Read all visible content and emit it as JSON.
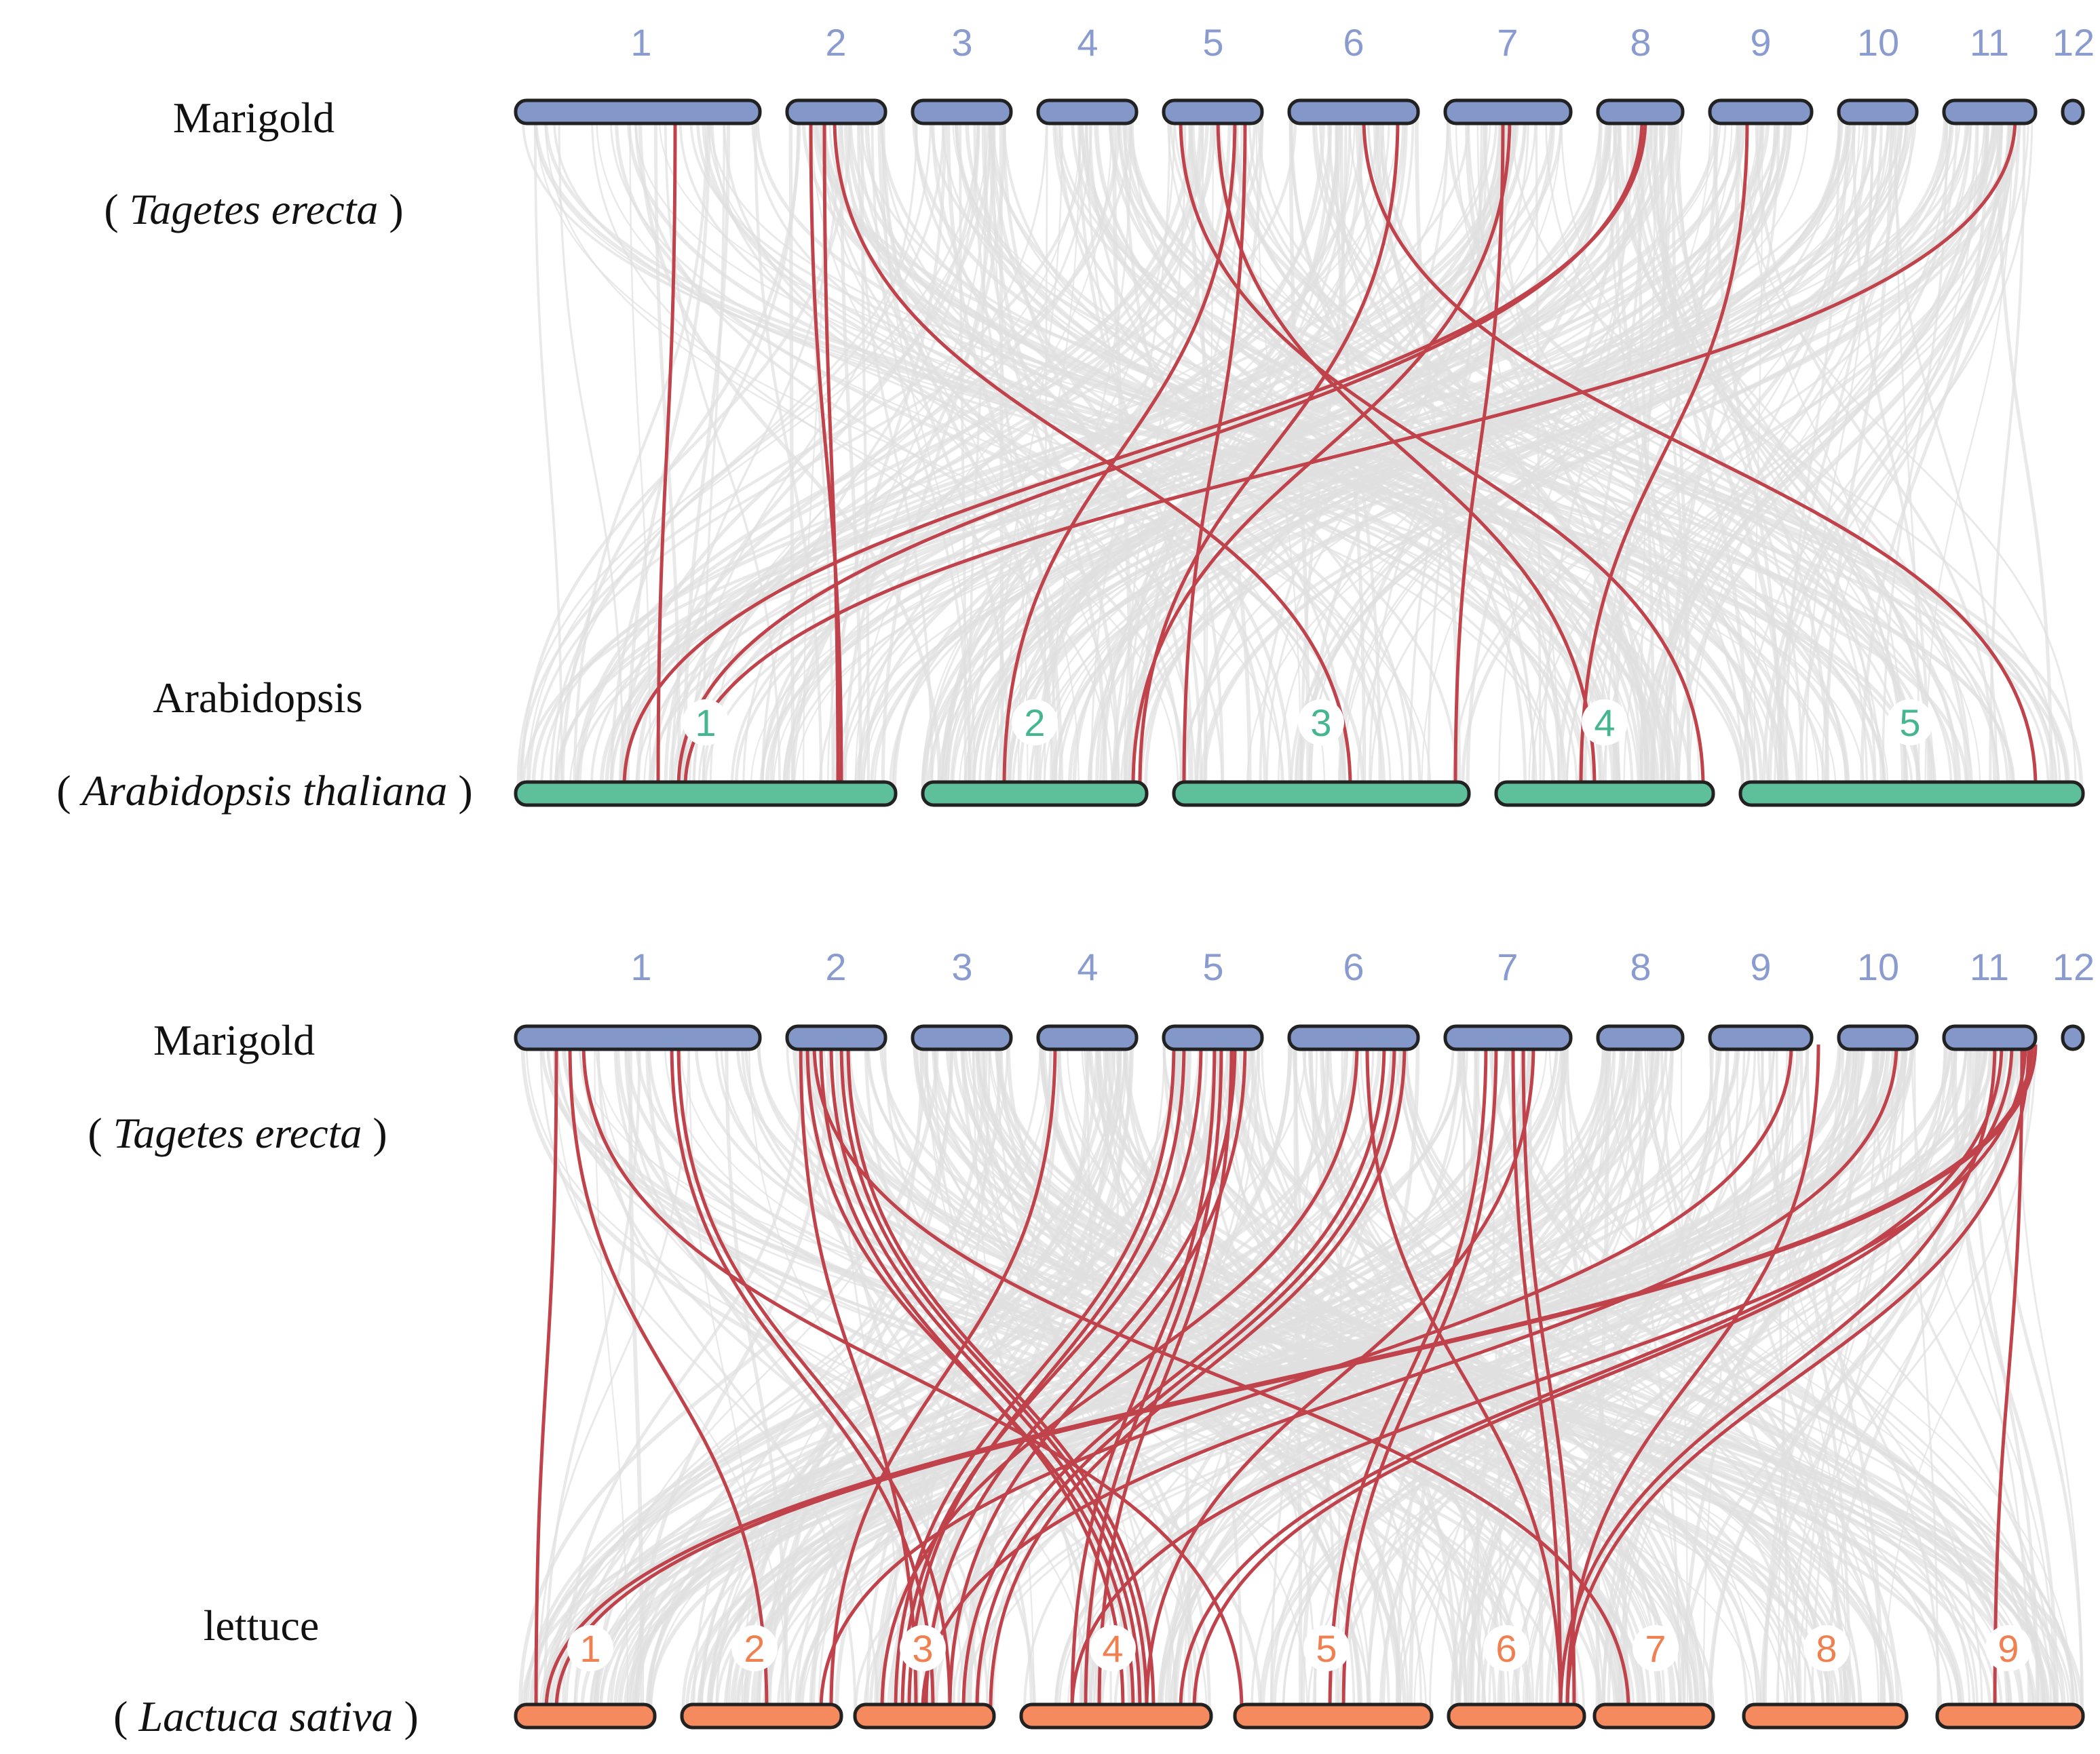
{
  "colors": {
    "background": "#ffffff",
    "marigold_chr": "#8497c9",
    "arabidopsis_chr": "#5ec09b",
    "lettuce_chr": "#f48a5d",
    "chr_outline": "#222222",
    "background_links": "#e0e0e0",
    "highlight_links": "#c0424b",
    "marigold_label": "#8a9bcf",
    "arabidopsis_label": "#46b691",
    "lettuce_label": "#f08050"
  },
  "panels": [
    {
      "id": "top",
      "top_genome": {
        "name": "Marigold",
        "species_open": "( ",
        "species": "Tagetes erecta",
        "species_close": " )",
        "chromosomes": [
          "1",
          "2",
          "3",
          "4",
          "5",
          "6",
          "7",
          "8",
          "9",
          "10",
          "11",
          "12"
        ]
      },
      "bottom_genome": {
        "name": "Arabidopsis",
        "species_open": "( ",
        "species": "Arabidopsis thaliana",
        "species_close": " )",
        "chromosomes": [
          "1",
          "2",
          "3",
          "4",
          "5"
        ]
      }
    },
    {
      "id": "bottom",
      "top_genome": {
        "name": "Marigold",
        "species_open": "( ",
        "species": "Tagetes erecta",
        "species_close": " )",
        "chromosomes": [
          "1",
          "2",
          "3",
          "4",
          "5",
          "6",
          "7",
          "8",
          "9",
          "10",
          "11",
          "12"
        ]
      },
      "bottom_genome": {
        "name": "lettuce",
        "species_open": "( ",
        "species": "Lactuca sativa",
        "species_close": " )",
        "chromosomes": [
          "1",
          "2",
          "3",
          "4",
          "5",
          "6",
          "7",
          "8",
          "9"
        ]
      }
    }
  ]
}
